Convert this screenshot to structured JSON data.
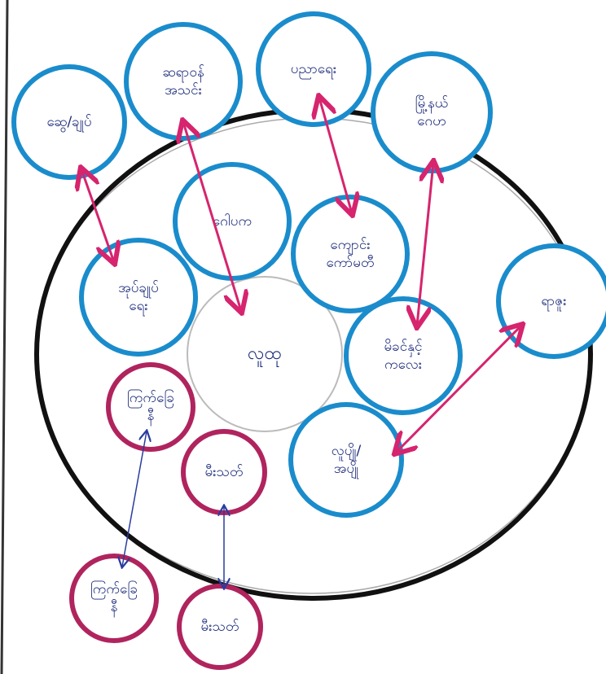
{
  "center": {
    "label": "လူထု"
  },
  "nodes": [
    {
      "label": "ဆွေ/ချုပ်"
    },
    {
      "label": "ဆရာဝန် အသင်း"
    },
    {
      "label": "ပညာရေး"
    },
    {
      "label": "မြို့နယ် ဂေဟ"
    },
    {
      "label": "ဂေါပက"
    },
    {
      "label": "ကျောင်း ကော်မတီ"
    },
    {
      "label": "အုပ်ချုပ် ရေး"
    },
    {
      "label": "ရာဇူး"
    },
    {
      "label": "မိခင်နှင့် ကလေး"
    },
    {
      "label": "လူပျို/ အပျို"
    },
    {
      "label": "ကြက်ခြေ နီ"
    },
    {
      "label": "မီးသတ်"
    },
    {
      "label": "ကြက်ခြေ နီ"
    },
    {
      "label": "မီးသတ်"
    }
  ]
}
